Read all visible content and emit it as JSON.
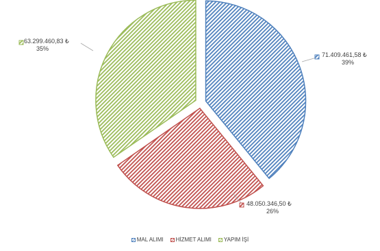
{
  "chart_data": {
    "type": "pie",
    "series": [
      {
        "name": "MAL ALIMI",
        "value_label": "71.409.461,58 ₺",
        "percent_label": "39%",
        "value": 71409461.58,
        "color": "#4f81bd"
      },
      {
        "name": "HİZMET ALIMI",
        "value_label": "48.050.346,50 ₺",
        "percent_label": "26%",
        "value": 48050346.5,
        "color": "#c0504d"
      },
      {
        "name": "YAPIM İŞİ",
        "value_label": "63.299.460,83 ₺",
        "percent_label": "35%",
        "value": 63299460.83,
        "color": "#9bbb59"
      }
    ],
    "legend_position": "bottom",
    "title": ""
  }
}
